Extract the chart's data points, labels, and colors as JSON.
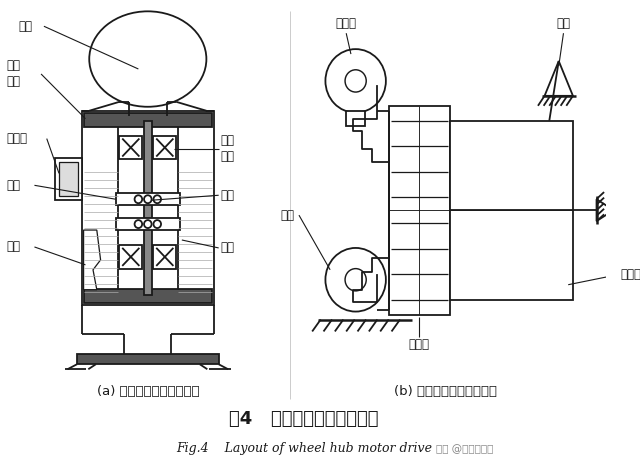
{
  "bg_color": "#ffffff",
  "line_color": "#1a1a1a",
  "title_cn": "图4   轮毂电机驱动布置形式",
  "title_en": "Fig.4    Layout of wheel hub motor drive",
  "watermark": "头条 @电动新视界",
  "sub_a_label": "(a) 直接驱动的外转子电机",
  "sub_b_label": "(b) 减速驱动的内转子电机"
}
